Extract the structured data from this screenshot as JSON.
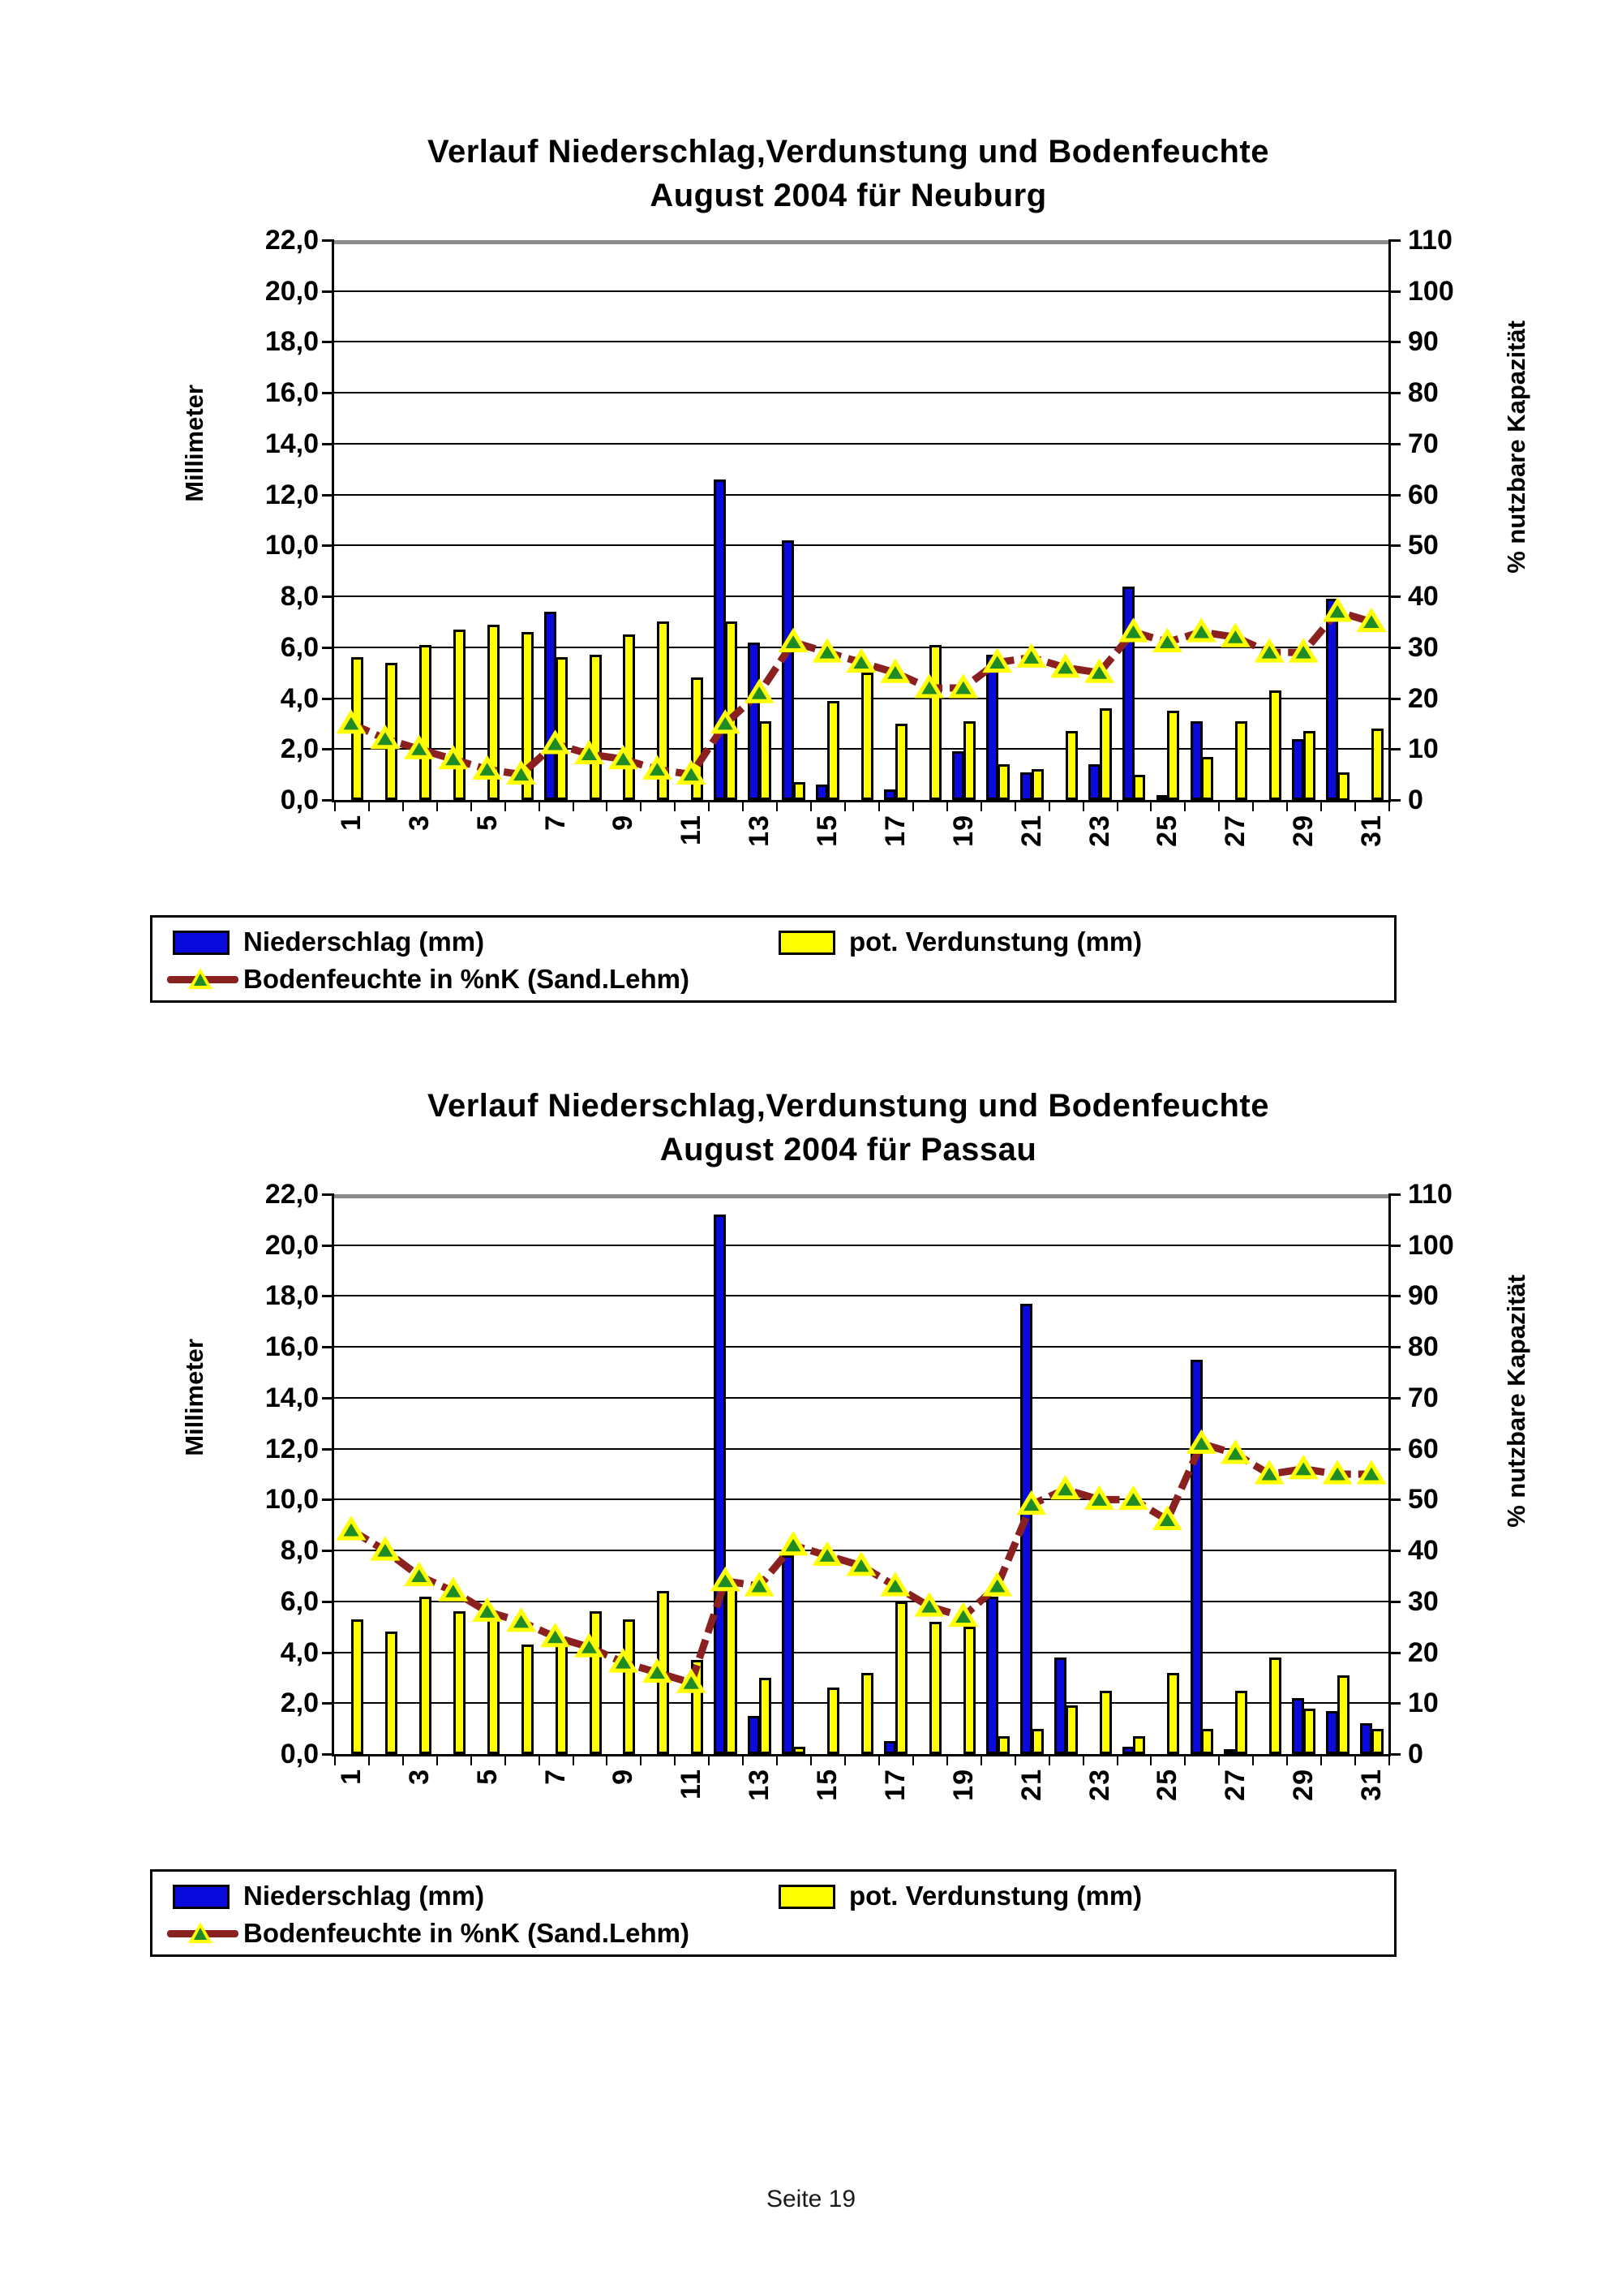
{
  "page": {
    "footer": "Seite 19"
  },
  "colors": {
    "bar_blue": "#0a0adc",
    "bar_yellow": "#ffff00",
    "line_darkred": "#8b2020",
    "marker_green": "#1f8b24",
    "marker_outline": "#ffff00",
    "grid_black": "#000000",
    "grid_top_gray": "#8c8c8c"
  },
  "chart_data": [
    {
      "type": "bar+line",
      "title_line1": "Verlauf Niederschlag,Verdunstung und Bodenfeuchte",
      "title_line2": "August 2004 für Neuburg",
      "ylabel_left": "Millimeter",
      "ylabel_right": "% nutzbare Kapazität",
      "y_left": {
        "min": 0,
        "max": 22,
        "step": 2,
        "labels": [
          "22,0",
          "20,0",
          "18,0",
          "16,0",
          "14,0",
          "12,0",
          "10,0",
          "8,0",
          "6,0",
          "4,0",
          "2,0",
          "0,0"
        ]
      },
      "y_right": {
        "min": 0,
        "max": 110,
        "step": 10,
        "labels": [
          "110",
          "100",
          "90",
          "80",
          "70",
          "60",
          "50",
          "40",
          "30",
          "20",
          "10",
          "0"
        ]
      },
      "categories": [
        1,
        2,
        3,
        4,
        5,
        6,
        7,
        8,
        9,
        10,
        11,
        12,
        13,
        14,
        15,
        16,
        17,
        18,
        19,
        20,
        21,
        22,
        23,
        24,
        25,
        26,
        27,
        28,
        29,
        30,
        31
      ],
      "x_tick_labels": [
        "1",
        "3",
        "5",
        "7",
        "9",
        "11",
        "13",
        "15",
        "17",
        "19",
        "21",
        "23",
        "25",
        "27",
        "29",
        "31"
      ],
      "grid": "horizontal",
      "legend_position": "bottom-box",
      "series": [
        {
          "name": "Niederschlag (mm)",
          "type": "bar",
          "color": "blue",
          "axis": "left",
          "values": [
            0,
            0,
            0,
            0,
            0,
            0,
            7.4,
            0,
            0,
            0,
            0,
            12.6,
            6.2,
            10.2,
            0.6,
            0,
            0.4,
            0,
            1.9,
            5.7,
            1.1,
            0,
            1.4,
            8.4,
            0.2,
            3.1,
            0,
            0,
            2.4,
            7.9,
            0
          ]
        },
        {
          "name": "pot. Verdunstung (mm)",
          "type": "bar",
          "color": "yellow",
          "axis": "left",
          "values": [
            5.6,
            5.4,
            6.1,
            6.7,
            6.9,
            6.6,
            5.6,
            5.7,
            6.5,
            7.0,
            4.8,
            7.0,
            3.1,
            0.7,
            3.9,
            5.0,
            3.0,
            6.1,
            3.1,
            1.4,
            1.2,
            2.7,
            3.6,
            1.0,
            3.5,
            1.7,
            3.1,
            4.3,
            2.7,
            1.1,
            2.8
          ]
        },
        {
          "name": "Bodenfeuchte in %nK (Sand.Lehm)",
          "type": "line",
          "color": "darkred",
          "axis": "right",
          "values": [
            15,
            12,
            10,
            8,
            6,
            5,
            11,
            9,
            8,
            6,
            5,
            15,
            21,
            31,
            29,
            27,
            25,
            22,
            22,
            27,
            28,
            26,
            25,
            33,
            31,
            33,
            32,
            29,
            29,
            37,
            35
          ]
        }
      ]
    },
    {
      "type": "bar+line",
      "title_line1": "Verlauf Niederschlag,Verdunstung und Bodenfeuchte",
      "title_line2": "August 2004 für Passau",
      "ylabel_left": "Millimeter",
      "ylabel_right": "% nutzbare Kapazität",
      "y_left": {
        "min": 0,
        "max": 22,
        "step": 2,
        "labels": [
          "22,0",
          "20,0",
          "18,0",
          "16,0",
          "14,0",
          "12,0",
          "10,0",
          "8,0",
          "6,0",
          "4,0",
          "2,0",
          "0,0"
        ]
      },
      "y_right": {
        "min": 0,
        "max": 110,
        "step": 10,
        "labels": [
          "110",
          "100",
          "90",
          "80",
          "70",
          "60",
          "50",
          "40",
          "30",
          "20",
          "10",
          "0"
        ]
      },
      "categories": [
        1,
        2,
        3,
        4,
        5,
        6,
        7,
        8,
        9,
        10,
        11,
        12,
        13,
        14,
        15,
        16,
        17,
        18,
        19,
        20,
        21,
        22,
        23,
        24,
        25,
        26,
        27,
        28,
        29,
        30,
        31
      ],
      "x_tick_labels": [
        "1",
        "3",
        "5",
        "7",
        "9",
        "11",
        "13",
        "15",
        "17",
        "19",
        "21",
        "23",
        "25",
        "27",
        "29",
        "31"
      ],
      "grid": "horizontal",
      "legend_position": "bottom-box",
      "series": [
        {
          "name": "Niederschlag (mm)",
          "type": "bar",
          "color": "blue",
          "axis": "left",
          "values": [
            0,
            0,
            0,
            0,
            0,
            0,
            0,
            0,
            0,
            0,
            0,
            21.2,
            1.5,
            7.8,
            0,
            0,
            0.5,
            0,
            0,
            6.2,
            17.7,
            3.8,
            0,
            0.3,
            0,
            15.5,
            0.2,
            0,
            2.2,
            1.7,
            1.2
          ]
        },
        {
          "name": "pot. Verdunstung (mm)",
          "type": "bar",
          "color": "yellow",
          "axis": "left",
          "values": [
            5.3,
            4.8,
            6.2,
            5.6,
            5.4,
            4.3,
            4.5,
            5.6,
            5.3,
            6.4,
            3.7,
            6.5,
            3.0,
            0.3,
            2.6,
            3.2,
            6.0,
            5.2,
            5.0,
            0.7,
            1.0,
            1.9,
            2.5,
            0.7,
            3.2,
            1.0,
            2.5,
            3.8,
            1.8,
            3.1,
            1.0
          ]
        },
        {
          "name": "Bodenfeuchte in %nK (Sand.Lehm)",
          "type": "line",
          "color": "darkred",
          "axis": "right",
          "values": [
            44,
            40,
            35,
            32,
            28,
            26,
            23,
            21,
            18,
            16,
            14,
            34,
            33,
            41,
            39,
            37,
            33,
            29,
            27,
            33,
            49,
            52,
            50,
            50,
            46,
            61,
            59,
            55,
            56,
            55,
            55
          ]
        }
      ]
    }
  ]
}
